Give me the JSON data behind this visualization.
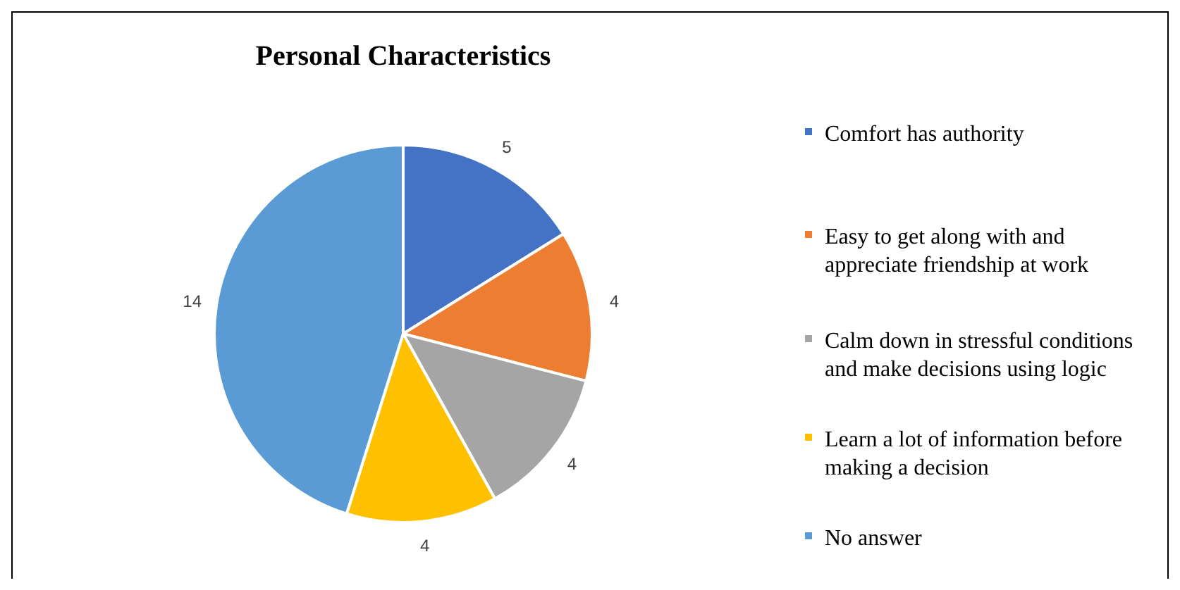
{
  "chart_data": {
    "type": "pie",
    "title": "Personal Characteristics",
    "categories": [
      "Comfort has authority",
      "Easy to get along with and appreciate friendship at work",
      "Calm down in stressful conditions and make decisions using logic",
      "Learn a lot of information before making a decision",
      "No answer"
    ],
    "values": [
      5,
      4,
      4,
      4,
      14
    ],
    "colors": [
      "#4472c4",
      "#ed7d31",
      "#a5a5a5",
      "#ffc000",
      "#5b9bd5"
    ],
    "data_labels": true,
    "legend": "right"
  }
}
